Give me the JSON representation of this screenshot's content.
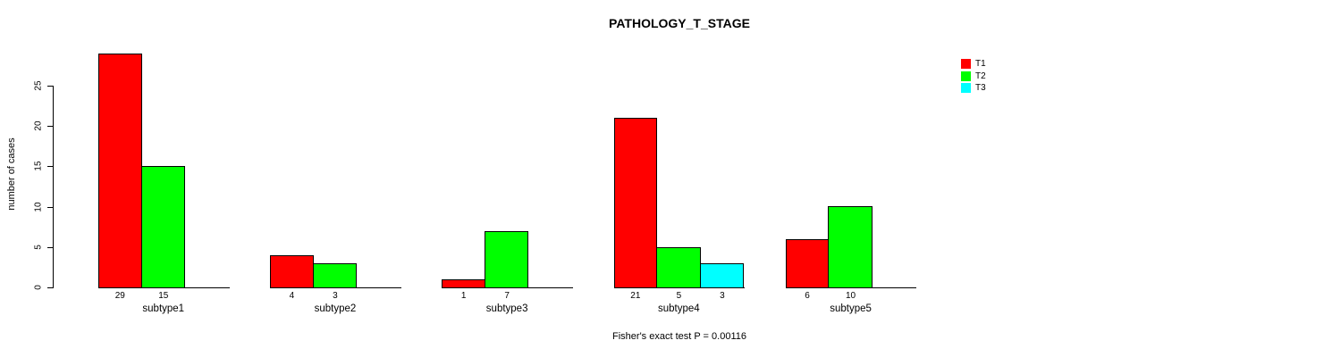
{
  "title": "PATHOLOGY_T_STAGE",
  "footnote": "Fisher's exact test P = 0.00116",
  "chart_data": {
    "type": "bar",
    "title": "PATHOLOGY_T_STAGE",
    "xlabel": "",
    "ylabel": "number of cases",
    "ylim": [
      0,
      29
    ],
    "yticks": [
      0,
      5,
      10,
      15,
      20,
      25
    ],
    "grid": false,
    "legend_position": "top-right",
    "categories": [
      "subtype1",
      "subtype2",
      "subtype3",
      "subtype4",
      "subtype5"
    ],
    "series": [
      {
        "name": "T1",
        "color": "#FF0000",
        "values": [
          29,
          4,
          1,
          21,
          6
        ]
      },
      {
        "name": "T2",
        "color": "#00FF00",
        "values": [
          15,
          3,
          7,
          5,
          10
        ]
      },
      {
        "name": "T3",
        "color": "#00FFFF",
        "values": [
          0,
          0,
          0,
          3,
          0
        ]
      }
    ],
    "bar_value_labels": {
      "subtype1": [
        29,
        15,
        null
      ],
      "subtype2": [
        4,
        3,
        null
      ],
      "subtype3": [
        1,
        7,
        null
      ],
      "subtype4": [
        21,
        5,
        3
      ],
      "subtype5": [
        6,
        10,
        null
      ]
    },
    "annotation": "Fisher's exact test P = 0.00116"
  },
  "legend": {
    "items": [
      {
        "label": "T1",
        "color": "#FF0000"
      },
      {
        "label": "T2",
        "color": "#00FF00"
      },
      {
        "label": "T3",
        "color": "#00FFFF"
      }
    ]
  }
}
